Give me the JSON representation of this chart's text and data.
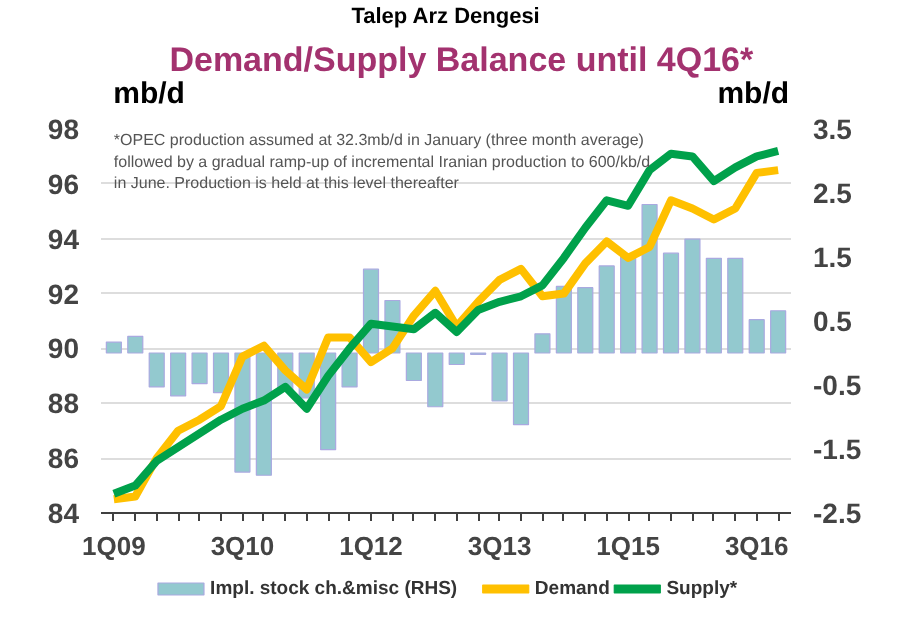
{
  "chart_data": {
    "type": "line",
    "title": "Talep Arz Dengesi",
    "subtitle": "Demand/Supply Balance until 4Q16*",
    "ylabel": "mb/d",
    "y2label": "mb/d",
    "annotations": [
      "*OPEC production assumed at 32.3mb/d in January (three month average) followed by a gradual ramp-up of incremental Iranian production to 600/kb/d in June. Production is held at this level thereafter"
    ],
    "categories": [
      "1Q09",
      null,
      null,
      null,
      null,
      null,
      "3Q10",
      null,
      null,
      null,
      null,
      null,
      "1Q12",
      null,
      null,
      null,
      null,
      null,
      "3Q13",
      null,
      null,
      null,
      null,
      null,
      "1Q15",
      null,
      null,
      null,
      null,
      null,
      "3Q16",
      null
    ],
    "series": [
      {
        "name": "Impl. stock ch.&misc (RHS)",
        "type": "bar",
        "axis": "y2",
        "color": "#93c9cf",
        "values": [
          0.17,
          0.26,
          -0.53,
          -0.67,
          -0.48,
          -0.62,
          -1.86,
          -1.91,
          -0.59,
          -0.7,
          -1.51,
          -0.53,
          1.31,
          0.82,
          -0.43,
          -0.84,
          -0.18,
          -0.02,
          -0.75,
          -1.12,
          0.3,
          1.04,
          1.02,
          1.36,
          1.52,
          2.32,
          1.56,
          1.78,
          1.48,
          1.48,
          0.52,
          0.66
        ]
      },
      {
        "name": "Demand",
        "color": "#ffc000",
        "values": [
          84.5,
          84.6,
          86.0,
          87.0,
          87.4,
          87.9,
          89.7,
          90.1,
          89.2,
          88.5,
          90.4,
          90.4,
          89.5,
          90.0,
          91.2,
          92.1,
          90.8,
          91.7,
          92.5,
          92.9,
          91.9,
          92.0,
          93.1,
          93.9,
          93.3,
          93.7,
          95.4,
          95.1,
          94.7,
          95.1,
          96.4,
          96.5
        ]
      },
      {
        "name": "Supply*",
        "color": "#00a14b",
        "values": [
          84.7,
          85.0,
          85.9,
          86.4,
          86.9,
          87.4,
          87.8,
          88.1,
          88.6,
          87.8,
          89.0,
          90.0,
          90.9,
          90.8,
          90.7,
          91.3,
          90.6,
          91.4,
          91.7,
          91.9,
          92.3,
          93.3,
          94.4,
          95.4,
          95.2,
          96.5,
          97.1,
          97.0,
          96.1,
          96.6,
          97.0,
          97.2
        ]
      }
    ],
    "ylim": [
      84,
      98
    ],
    "yticks": [
      84,
      86,
      88,
      90,
      92,
      94,
      96,
      98
    ],
    "y2lim": [
      -2.5,
      3.5
    ],
    "y2ticks": [
      -2.5,
      -1.5,
      -0.5,
      0.5,
      1.5,
      2.5,
      3.5
    ],
    "grid": "y",
    "legend": "bottom"
  }
}
